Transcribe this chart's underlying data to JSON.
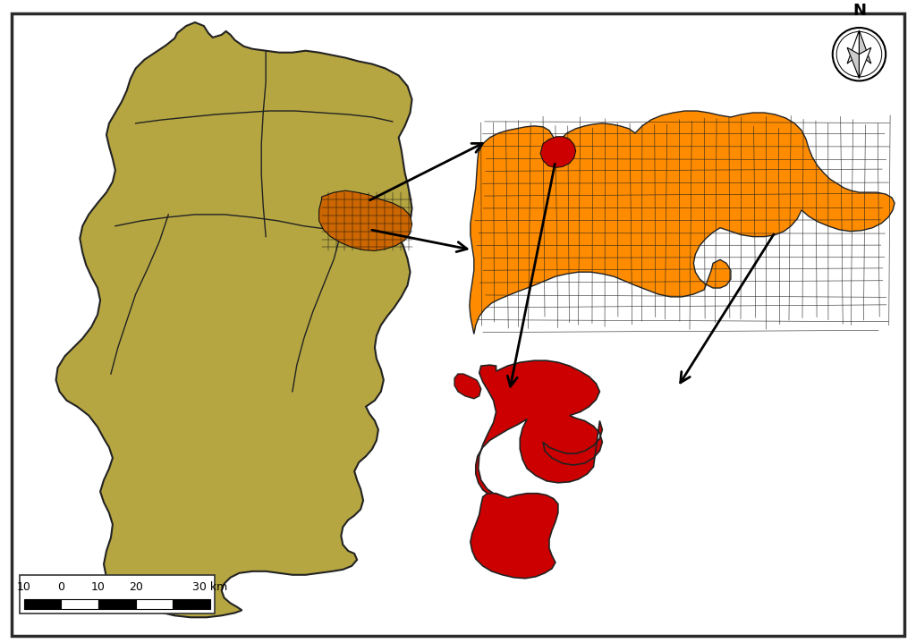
{
  "background_color": "#ffffff",
  "border_color": "#2a2a2a",
  "state_color": "#b5a642",
  "cluster_color": "#cc6600",
  "region_color": "#ff8c00",
  "highlight_color": "#cc0000",
  "municipality_color": "#cc0000",
  "scale_labels": [
    "10",
    "0",
    "10",
    "20",
    "30 km"
  ],
  "arrow_color": "#000000",
  "grid_color": "#333333"
}
